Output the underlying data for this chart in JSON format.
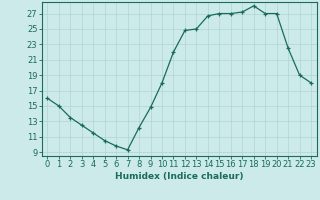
{
  "x": [
    0,
    1,
    2,
    3,
    4,
    5,
    6,
    7,
    8,
    9,
    10,
    11,
    12,
    13,
    14,
    15,
    16,
    17,
    18,
    19,
    20,
    21,
    22,
    23
  ],
  "y": [
    16.0,
    15.0,
    13.5,
    12.5,
    11.5,
    10.5,
    9.8,
    9.3,
    12.2,
    14.8,
    18.0,
    22.0,
    24.8,
    25.0,
    26.7,
    27.0,
    27.0,
    27.2,
    28.0,
    27.0,
    27.0,
    22.5,
    19.0,
    18.0
  ],
  "xlabel": "Humidex (Indice chaleur)",
  "xlim": [
    -0.5,
    23.5
  ],
  "ylim": [
    8.5,
    28.5
  ],
  "yticks": [
    9,
    11,
    13,
    15,
    17,
    19,
    21,
    23,
    25,
    27
  ],
  "xticks": [
    0,
    1,
    2,
    3,
    4,
    5,
    6,
    7,
    8,
    9,
    10,
    11,
    12,
    13,
    14,
    15,
    16,
    17,
    18,
    19,
    20,
    21,
    22,
    23
  ],
  "line_color": "#1a6b5a",
  "marker": "+",
  "marker_color": "#1a6b5a",
  "bg_color": "#cceaea",
  "grid_color": "#aed4d4",
  "axis_color": "#1a6b5a",
  "tick_label_color": "#1a6b5a",
  "xlabel_color": "#1a6b5a",
  "font_size_labels": 6.5,
  "font_size_ticks": 6.0
}
